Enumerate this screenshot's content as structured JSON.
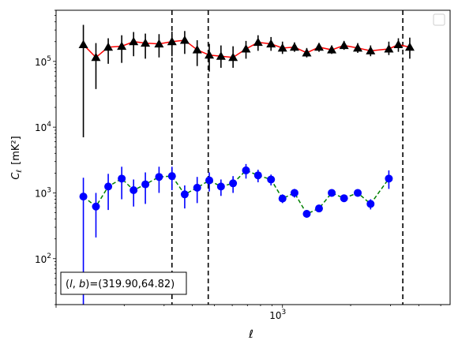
{
  "chart_data": {
    "type": "scatter",
    "title": "",
    "xscale": "log",
    "yscale": "log",
    "xlim": [
      100,
      5500
    ],
    "ylim": [
      20,
      600000
    ],
    "xlabel": "ℓ",
    "ylabel_main": "C",
    "ylabel_sub": "ℓ",
    "ylabel_unit": "[mK²]",
    "x_ticks": [
      {
        "value": 1000,
        "base": "10",
        "exp": "3"
      }
    ],
    "y_ticks": [
      {
        "value": 100,
        "base": "10",
        "exp": "2"
      },
      {
        "value": 1000,
        "base": "10",
        "exp": "3"
      },
      {
        "value": 10000,
        "base": "10",
        "exp": "4"
      },
      {
        "value": 100000,
        "base": "10",
        "exp": "5"
      }
    ],
    "vlines": [
      325,
      470,
      3400
    ],
    "annotation": "(l, b)=(319.90,64.82)",
    "annotation_parts": {
      "l": "l",
      "b": "b",
      "values": "=(319.90,64.82)"
    },
    "legend": "top-right",
    "series": [
      {
        "marker": "triangle",
        "marker_color": "#000000",
        "line_color": "#ff0000",
        "line_style": "solid",
        "errorbar_color": "#000000",
        "points": [
          {
            "x": 132,
            "y": 180000,
            "lo": 7000,
            "hi": 360000
          },
          {
            "x": 150,
            "y": 115000,
            "lo": 38000,
            "hi": 190000
          },
          {
            "x": 170,
            "y": 165000,
            "lo": 92000,
            "hi": 225000
          },
          {
            "x": 195,
            "y": 170000,
            "lo": 95000,
            "hi": 250000
          },
          {
            "x": 220,
            "y": 200000,
            "lo": 120000,
            "hi": 280000
          },
          {
            "x": 248,
            "y": 190000,
            "lo": 110000,
            "hi": 265000
          },
          {
            "x": 285,
            "y": 185000,
            "lo": 115000,
            "hi": 260000
          },
          {
            "x": 325,
            "y": 200000,
            "lo": 120000,
            "hi": 285000
          },
          {
            "x": 370,
            "y": 210000,
            "lo": 130000,
            "hi": 290000
          },
          {
            "x": 420,
            "y": 150000,
            "lo": 85000,
            "hi": 210000
          },
          {
            "x": 475,
            "y": 125000,
            "lo": 70000,
            "hi": 185000
          },
          {
            "x": 535,
            "y": 120000,
            "lo": 80000,
            "hi": 175000
          },
          {
            "x": 605,
            "y": 115000,
            "lo": 80000,
            "hi": 170000
          },
          {
            "x": 690,
            "y": 155000,
            "lo": 110000,
            "hi": 205000
          },
          {
            "x": 780,
            "y": 195000,
            "lo": 145000,
            "hi": 250000
          },
          {
            "x": 890,
            "y": 185000,
            "lo": 145000,
            "hi": 235000
          },
          {
            "x": 1000,
            "y": 160000,
            "lo": 130000,
            "hi": 200000
          },
          {
            "x": 1130,
            "y": 165000,
            "lo": 140000,
            "hi": 195000
          },
          {
            "x": 1280,
            "y": 135000,
            "lo": 115000,
            "hi": 160000
          },
          {
            "x": 1450,
            "y": 165000,
            "lo": 140000,
            "hi": 190000
          },
          {
            "x": 1650,
            "y": 150000,
            "lo": 130000,
            "hi": 175000
          },
          {
            "x": 1870,
            "y": 175000,
            "lo": 150000,
            "hi": 205000
          },
          {
            "x": 2150,
            "y": 160000,
            "lo": 135000,
            "hi": 190000
          },
          {
            "x": 2450,
            "y": 145000,
            "lo": 120000,
            "hi": 175000
          },
          {
            "x": 2950,
            "y": 155000,
            "lo": 125000,
            "hi": 200000
          },
          {
            "x": 3250,
            "y": 180000,
            "lo": 140000,
            "hi": 225000
          },
          {
            "x": 3650,
            "y": 165000,
            "lo": 110000,
            "hi": 230000
          }
        ]
      },
      {
        "marker": "circle",
        "marker_color": "#0000ff",
        "line_color": "#008000",
        "line_style": "dashed",
        "errorbar_color": "#0000ff",
        "points": [
          {
            "x": 132,
            "y": 880,
            "lo": 20,
            "hi": 1700
          },
          {
            "x": 150,
            "y": 620,
            "lo": 210,
            "hi": 1000
          },
          {
            "x": 170,
            "y": 1250,
            "lo": 550,
            "hi": 1950
          },
          {
            "x": 195,
            "y": 1650,
            "lo": 800,
            "hi": 2500
          },
          {
            "x": 220,
            "y": 1100,
            "lo": 620,
            "hi": 1600
          },
          {
            "x": 248,
            "y": 1350,
            "lo": 680,
            "hi": 2050
          },
          {
            "x": 285,
            "y": 1750,
            "lo": 1000,
            "hi": 2500
          },
          {
            "x": 325,
            "y": 1800,
            "lo": 1100,
            "hi": 2500
          },
          {
            "x": 370,
            "y": 950,
            "lo": 580,
            "hi": 1300
          },
          {
            "x": 420,
            "y": 1200,
            "lo": 700,
            "hi": 1750
          },
          {
            "x": 475,
            "y": 1550,
            "lo": 1050,
            "hi": 2050
          },
          {
            "x": 535,
            "y": 1250,
            "lo": 900,
            "hi": 1600
          },
          {
            "x": 605,
            "y": 1400,
            "lo": 1000,
            "hi": 1800
          },
          {
            "x": 690,
            "y": 2200,
            "lo": 1650,
            "hi": 2750
          },
          {
            "x": 780,
            "y": 1850,
            "lo": 1450,
            "hi": 2250
          },
          {
            "x": 890,
            "y": 1600,
            "lo": 1300,
            "hi": 1900
          },
          {
            "x": 1000,
            "y": 820,
            "lo": 700,
            "hi": 950
          },
          {
            "x": 1130,
            "y": 1000,
            "lo": 850,
            "hi": 1150
          },
          {
            "x": 1280,
            "y": 480,
            "lo": 420,
            "hi": 550
          },
          {
            "x": 1450,
            "y": 580,
            "lo": 510,
            "hi": 660
          },
          {
            "x": 1650,
            "y": 1000,
            "lo": 900,
            "hi": 1100
          },
          {
            "x": 1870,
            "y": 830,
            "lo": 750,
            "hi": 920
          },
          {
            "x": 2150,
            "y": 1000,
            "lo": 900,
            "hi": 1100
          },
          {
            "x": 2450,
            "y": 680,
            "lo": 560,
            "hi": 800
          },
          {
            "x": 2950,
            "y": 1650,
            "lo": 1150,
            "hi": 2200
          }
        ]
      }
    ]
  }
}
